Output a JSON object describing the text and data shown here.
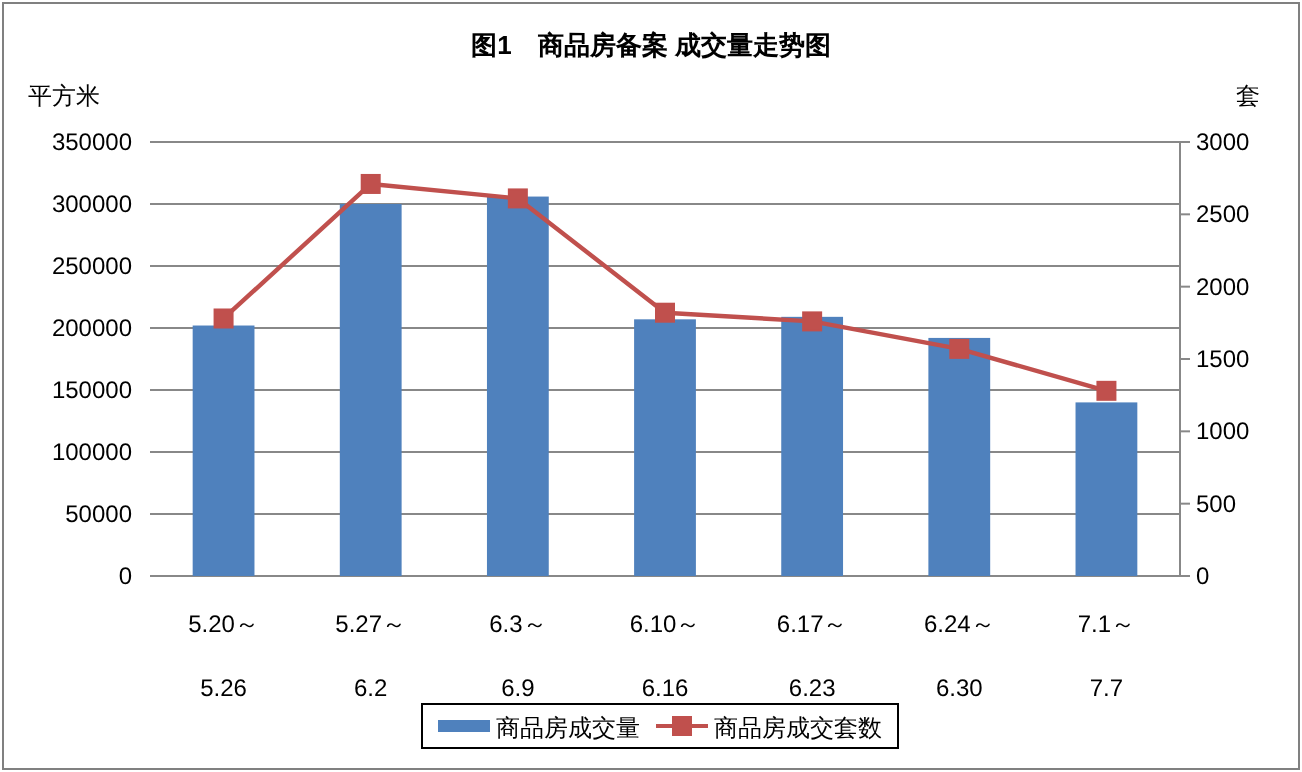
{
  "chart_data": {
    "type": "bar",
    "title": "图1　商品房备案 成交量走势图",
    "ylabel": "平方米",
    "y2label": "套",
    "categories": [
      "5.20～\n5.26",
      "5.27～\n6.2",
      "6.3～\n6.9",
      "6.10～\n6.16",
      "6.17～\n6.23",
      "6.24～\n6.30",
      "7.1～\n7.7"
    ],
    "series": [
      {
        "name": "商品房成交量",
        "color": "#4f81bd",
        "values": [
          202000,
          300000,
          306000,
          207000,
          209000,
          192000,
          140000
        ]
      },
      {
        "name": "商品房成交套数",
        "type": "line",
        "axis": "y2",
        "color": "#c0504d",
        "marker": "square",
        "values": [
          1780,
          2710,
          2610,
          1820,
          1760,
          1570,
          1280
        ]
      }
    ],
    "ylim": [
      0,
      350000
    ],
    "yticks": [
      0,
      50000,
      100000,
      150000,
      200000,
      250000,
      300000,
      350000
    ],
    "y2lim": [
      0,
      3000
    ],
    "y2ticks": [
      0,
      500,
      1000,
      1500,
      2000,
      2500,
      3000
    ],
    "grid": "y",
    "legend": "bottom"
  }
}
